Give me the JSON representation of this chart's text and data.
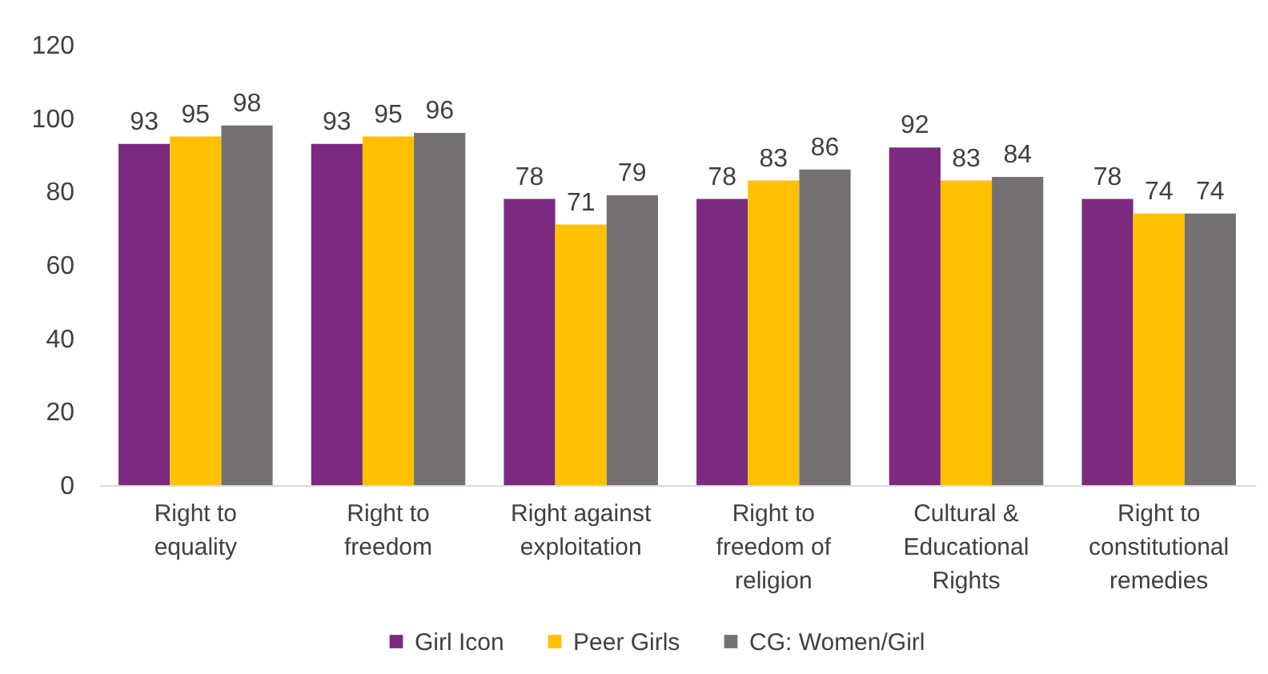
{
  "chart_data": {
    "type": "bar",
    "categories": [
      "Right to equality",
      "Right to freedom",
      "Right against exploitation",
      "Right to freedom of religion",
      "Cultural & Educational Rights",
      "Right to constitutional remedies"
    ],
    "series": [
      {
        "name": "Girl Icon",
        "color": "#7b2a80",
        "values": [
          93,
          93,
          78,
          78,
          92,
          78
        ]
      },
      {
        "name": "Peer Girls",
        "color": "#ffc000",
        "values": [
          95,
          95,
          71,
          83,
          83,
          74
        ]
      },
      {
        "name": "CG: Women/Girl",
        "color": "#767171",
        "values": [
          98,
          96,
          79,
          86,
          84,
          74
        ]
      }
    ],
    "ylim": [
      0,
      120
    ],
    "yticks": [
      0,
      20,
      40,
      60,
      80,
      100,
      120
    ],
    "data_labels": true,
    "legend": "bottom",
    "grid": false
  }
}
